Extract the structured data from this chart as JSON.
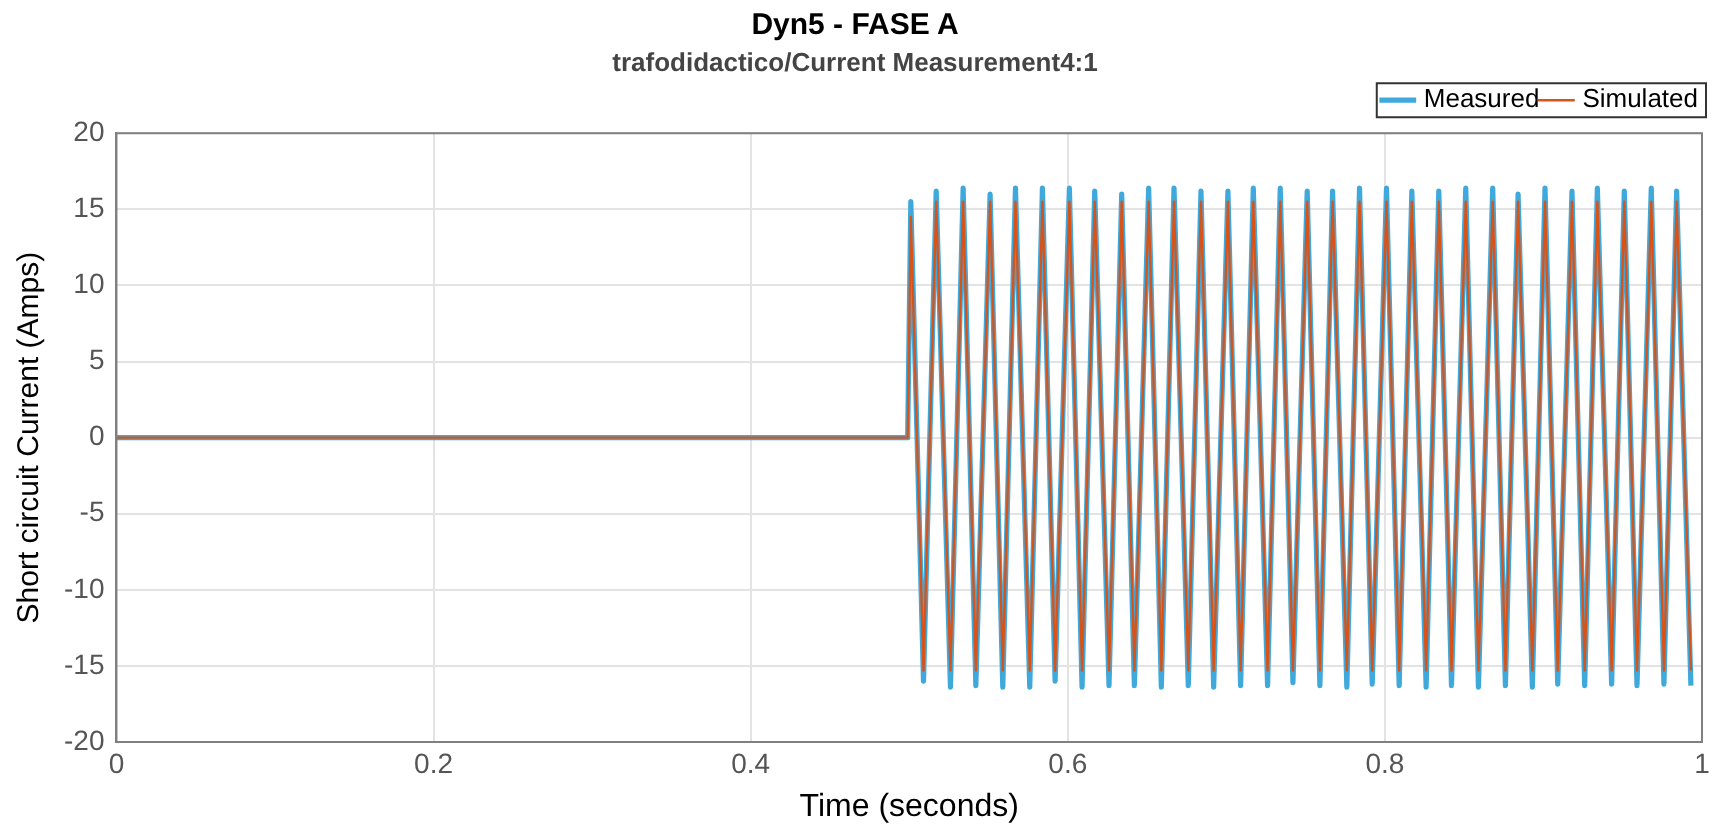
{
  "chart_data": {
    "type": "line",
    "title": "Dyn5 - FASE A",
    "subtitle": "trafodidactico/Current Measurement4:1",
    "xlabel": "Time (seconds)",
    "ylabel": "Short circuit Current (Amps)",
    "x": [
      0,
      0.499,
      0.501,
      0.509,
      0.517,
      0.526,
      0.534,
      0.542,
      0.551,
      0.559,
      0.567,
      0.576,
      0.584,
      0.592,
      0.601,
      0.609,
      0.617,
      0.626,
      0.634,
      0.642,
      0.651,
      0.659,
      0.667,
      0.676,
      0.684,
      0.692,
      0.701,
      0.709,
      0.717,
      0.726,
      0.734,
      0.742,
      0.751,
      0.759,
      0.767,
      0.776,
      0.784,
      0.792,
      0.801,
      0.809,
      0.817,
      0.826,
      0.834,
      0.842,
      0.851,
      0.859,
      0.868,
      0.876,
      0.884,
      0.893,
      0.901,
      0.909,
      0.918,
      0.926,
      0.934,
      0.943,
      0.951,
      0.959,
      0.968,
      0.976,
      0.984,
      0.993
    ],
    "series": [
      {
        "name": "Measured",
        "color": "#3fa9dc",
        "values": [
          0,
          0,
          15.5,
          -16.0,
          16.2,
          -16.4,
          16.4,
          -16.3,
          16.0,
          -16.4,
          16.4,
          -16.4,
          16.4,
          -16.0,
          16.4,
          -16.4,
          16.2,
          -16.3,
          16.0,
          -16.3,
          16.4,
          -16.4,
          16.4,
          -16.3,
          16.2,
          -16.4,
          16.2,
          -16.3,
          16.4,
          -16.3,
          16.4,
          -16.1,
          16.2,
          -16.3,
          16.2,
          -16.4,
          16.4,
          -16.2,
          16.4,
          -16.3,
          16.2,
          -16.4,
          16.2,
          -16.3,
          16.4,
          -16.4,
          16.4,
          -16.3,
          16.0,
          -16.4,
          16.4,
          -16.2,
          16.2,
          -16.3,
          16.4,
          -16.2,
          16.2,
          -16.3,
          16.4,
          -16.2,
          16.2,
          -16.3
        ]
      },
      {
        "name": "Simulated",
        "color": "#d95319",
        "values": [
          0,
          0,
          14.5,
          -15.3,
          15.5,
          -15.3,
          15.5,
          -15.3,
          15.5,
          -15.3,
          15.5,
          -15.3,
          15.5,
          -15.3,
          15.5,
          -15.3,
          15.5,
          -15.3,
          15.5,
          -15.3,
          15.5,
          -15.3,
          15.5,
          -15.3,
          15.5,
          -15.3,
          15.5,
          -15.3,
          15.5,
          -15.3,
          15.5,
          -15.3,
          15.5,
          -15.3,
          15.5,
          -15.3,
          15.5,
          -15.3,
          15.5,
          -15.3,
          15.5,
          -15.3,
          15.5,
          -15.3,
          15.5,
          -15.3,
          15.5,
          -15.3,
          15.5,
          -15.3,
          15.5,
          -15.3,
          15.5,
          -15.3,
          15.5,
          -15.3,
          15.5,
          -15.3,
          15.5,
          -15.3,
          15.5,
          -15.3
        ]
      }
    ],
    "xlim": [
      0,
      1
    ],
    "xticks": [
      0,
      0.2,
      0.4,
      0.6,
      0.8,
      1
    ],
    "ylim": [
      -20,
      20
    ],
    "yticks": [
      -20,
      -15,
      -10,
      -5,
      0,
      5,
      10,
      15,
      20
    ],
    "grid": true,
    "legend": "top right",
    "marker": "none",
    "line_style": "solid"
  }
}
